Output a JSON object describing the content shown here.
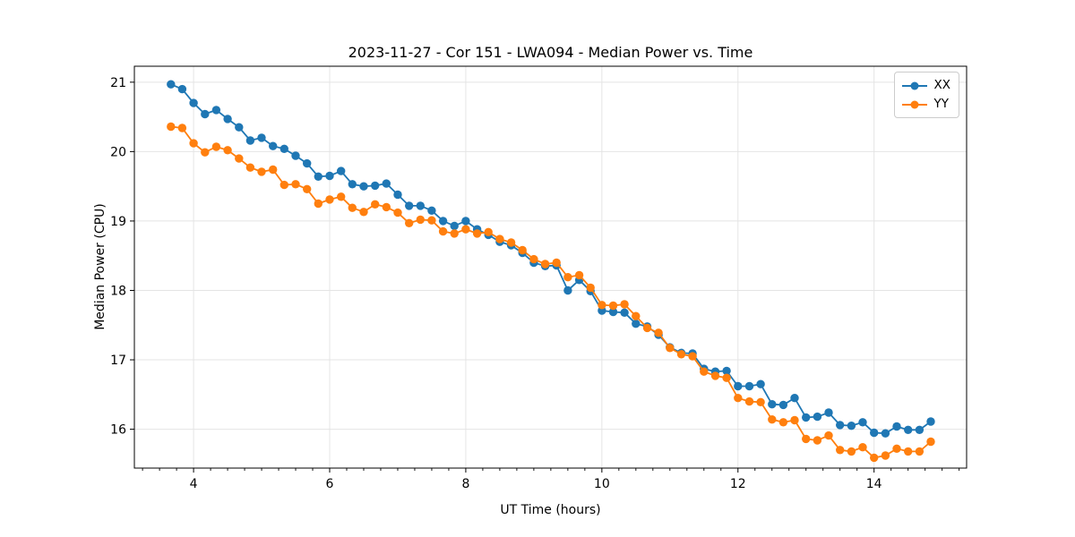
{
  "chart_data": {
    "type": "line",
    "title": "2023-11-27 - Cor 151 - LWA094 - Median Power vs. Time",
    "xlabel": "UT Time (hours)",
    "ylabel": "Median Power (CPU)",
    "xlim": [
      3.13,
      15.36
    ],
    "ylim": [
      15.44,
      21.23
    ],
    "x_major_ticks": [
      4,
      6,
      8,
      10,
      12,
      14
    ],
    "x_minor_tick_step": 0.25,
    "y_major_ticks": [
      16,
      17,
      18,
      19,
      20,
      21
    ],
    "grid": "major-both-light-gray",
    "legend_position": "upper right",
    "background": "#ffffff",
    "grid_color": "#e4e4e4",
    "spine_color": "#000000",
    "x": [
      3.667,
      3.833,
      4.0,
      4.167,
      4.333,
      4.5,
      4.667,
      4.833,
      5.0,
      5.167,
      5.333,
      5.5,
      5.667,
      5.833,
      6.0,
      6.167,
      6.333,
      6.5,
      6.667,
      6.833,
      7.0,
      7.167,
      7.333,
      7.5,
      7.667,
      7.833,
      8.0,
      8.167,
      8.333,
      8.5,
      8.667,
      8.833,
      9.0,
      9.167,
      9.333,
      9.5,
      9.667,
      9.833,
      10.0,
      10.167,
      10.333,
      10.5,
      10.667,
      10.833,
      11.0,
      11.167,
      11.333,
      11.5,
      11.667,
      11.833,
      12.0,
      12.167,
      12.333,
      12.5,
      12.667,
      12.833,
      13.0,
      13.167,
      13.333,
      13.5,
      13.667,
      13.833,
      14.0,
      14.167,
      14.333,
      14.5,
      14.667,
      14.833
    ],
    "series": [
      {
        "name": "XX",
        "color": "#1f77b4",
        "values": [
          20.97,
          20.9,
          20.7,
          20.54,
          20.6,
          20.47,
          20.35,
          20.16,
          20.2,
          20.08,
          20.04,
          19.94,
          19.83,
          19.64,
          19.65,
          19.72,
          19.53,
          19.5,
          19.51,
          19.54,
          19.38,
          19.22,
          19.22,
          19.15,
          19.0,
          18.93,
          19.0,
          18.88,
          18.8,
          18.7,
          18.65,
          18.54,
          18.4,
          18.35,
          18.36,
          18.0,
          18.15,
          17.99,
          17.71,
          17.69,
          17.68,
          17.52,
          17.48,
          17.36,
          17.18,
          17.1,
          17.09,
          16.87,
          16.83,
          16.84,
          16.62,
          16.62,
          16.65,
          16.36,
          16.35,
          16.45,
          16.17,
          16.18,
          16.24,
          16.06,
          16.05,
          16.1,
          15.95,
          15.94,
          16.04,
          15.99,
          15.99,
          16.11
        ]
      },
      {
        "name": "YY",
        "color": "#ff7f0e",
        "values": [
          20.36,
          20.34,
          20.12,
          19.99,
          20.07,
          20.02,
          19.9,
          19.77,
          19.71,
          19.74,
          19.52,
          19.53,
          19.46,
          19.25,
          19.31,
          19.35,
          19.19,
          19.13,
          19.24,
          19.2,
          19.12,
          18.97,
          19.02,
          19.01,
          18.85,
          18.82,
          18.88,
          18.82,
          18.84,
          18.74,
          18.69,
          18.58,
          18.45,
          18.38,
          18.4,
          18.19,
          18.22,
          18.04,
          17.79,
          17.78,
          17.8,
          17.63,
          17.46,
          17.39,
          17.17,
          17.08,
          17.05,
          16.83,
          16.77,
          16.74,
          16.45,
          16.4,
          16.39,
          16.14,
          16.1,
          16.13,
          15.86,
          15.84,
          15.91,
          15.7,
          15.68,
          15.74,
          15.59,
          15.62,
          15.72,
          15.68,
          15.68,
          15.82
        ]
      }
    ]
  }
}
